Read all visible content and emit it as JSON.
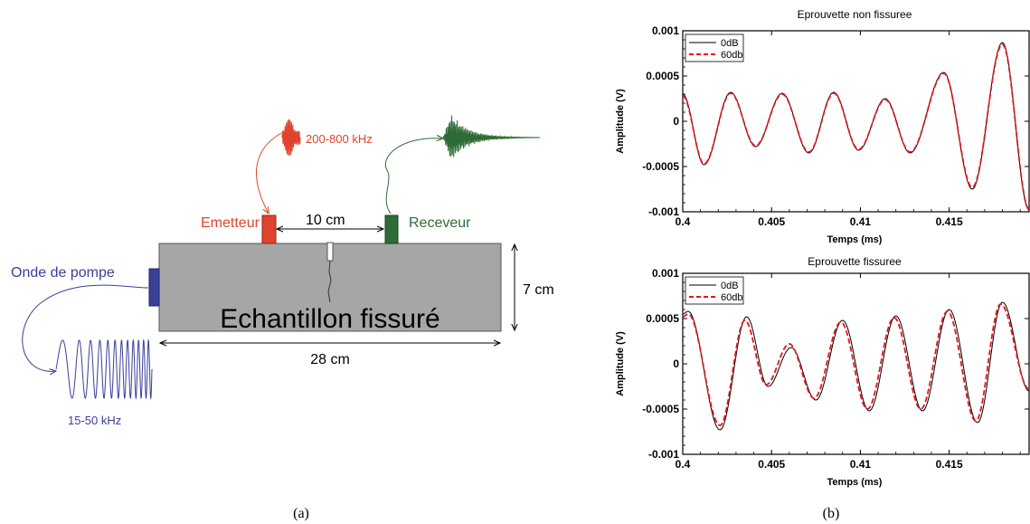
{
  "figure": {
    "caption_a": "(a)",
    "caption_b": "(b)"
  },
  "diagram": {
    "pump_label": "Onde de pompe",
    "pump_freq": "15-50 kHz",
    "emitter_label": "Emetteur",
    "emitter_freq": "200-800 kHz",
    "receiver_label": "Receveur",
    "distance_label": "10 cm",
    "length_label": "28 cm",
    "height_label": "7 cm",
    "sample_label": "Echantillon fissuré",
    "colors": {
      "pump": "#3a3f9a",
      "emitter": "#e0432b",
      "receiver": "#2f6b35",
      "sample": "#a6a6a6"
    }
  },
  "chart_data": [
    {
      "type": "line",
      "title": "Eprouvette non fissuree",
      "xlabel": "Temps (ms)",
      "ylabel": "Amplitude (V)",
      "xlim": [
        0.4,
        0.4195
      ],
      "ylim": [
        -0.001,
        0.001
      ],
      "xticks": [
        "0.4",
        "0.405",
        "0.41",
        "0.415"
      ],
      "yticks": [
        "0.001",
        "0.0005",
        "0",
        "-0.0005",
        "-0.001"
      ],
      "legend_position": "top-left",
      "series": [
        {
          "name": "0dB",
          "color": "#000000",
          "dash": "solid",
          "x": [
            0.4,
            0.4012,
            0.4027,
            0.4041,
            0.4056,
            0.4071,
            0.4085,
            0.4099,
            0.4114,
            0.4128,
            0.4147,
            0.4163,
            0.418,
            0.4195
          ],
          "y": [
            0.0003,
            -0.00048,
            0.00032,
            -0.00028,
            0.00031,
            -0.00035,
            0.00032,
            -0.00032,
            0.00025,
            -0.00035,
            0.00054,
            -0.00075,
            0.00087,
            -0.00098
          ]
        },
        {
          "name": "60db",
          "color": "#e8141b",
          "dash": "dashed",
          "x": [
            0.4,
            0.4012,
            0.4027,
            0.4041,
            0.4056,
            0.4071,
            0.4085,
            0.4099,
            0.4114,
            0.4128,
            0.4147,
            0.4163,
            0.418,
            0.4195
          ],
          "y": [
            0.00028,
            -0.00047,
            0.00031,
            -0.00027,
            0.0003,
            -0.00034,
            0.00031,
            -0.00031,
            0.00024,
            -0.00034,
            0.00053,
            -0.00073,
            0.00085,
            -0.00097
          ]
        }
      ]
    },
    {
      "type": "line",
      "title": "Eprouvette fissuree",
      "xlabel": "Temps (ms)",
      "ylabel": "Amplitude (V)",
      "xlim": [
        0.4,
        0.4195
      ],
      "ylim": [
        -0.001,
        0.001
      ],
      "xticks": [
        "0.4",
        "0.405",
        "0.41",
        "0.415"
      ],
      "yticks": [
        "0.001",
        "0.0005",
        "0",
        "-0.0005",
        "-0.001"
      ],
      "legend_position": "top-left",
      "series": [
        {
          "name": "0dB",
          "color": "#000000",
          "dash": "solid",
          "x": [
            0.4,
            0.4003,
            0.4021,
            0.4036,
            0.4048,
            0.4061,
            0.4075,
            0.409,
            0.4105,
            0.412,
            0.4135,
            0.415,
            0.4166,
            0.418,
            0.4195
          ],
          "y": [
            0.00055,
            0.00058,
            -0.00073,
            0.00052,
            -0.00025,
            0.00018,
            -0.0004,
            0.00048,
            -0.00052,
            0.00053,
            -0.00052,
            0.0006,
            -0.00065,
            0.00068,
            -0.0003
          ]
        },
        {
          "name": "60db",
          "color": "#e8141b",
          "dash": "dashed",
          "x": [
            0.4,
            0.4003,
            0.4021,
            0.4035,
            0.4047,
            0.406,
            0.4074,
            0.4089,
            0.4104,
            0.4119,
            0.4134,
            0.4149,
            0.4165,
            0.4179,
            0.4195
          ],
          "y": [
            0.00052,
            0.00055,
            -0.00068,
            0.00048,
            -0.00023,
            0.00022,
            -0.00038,
            0.00046,
            -0.0005,
            0.00051,
            -0.0005,
            0.00058,
            -0.00063,
            0.00066,
            -0.00028
          ]
        }
      ]
    }
  ]
}
